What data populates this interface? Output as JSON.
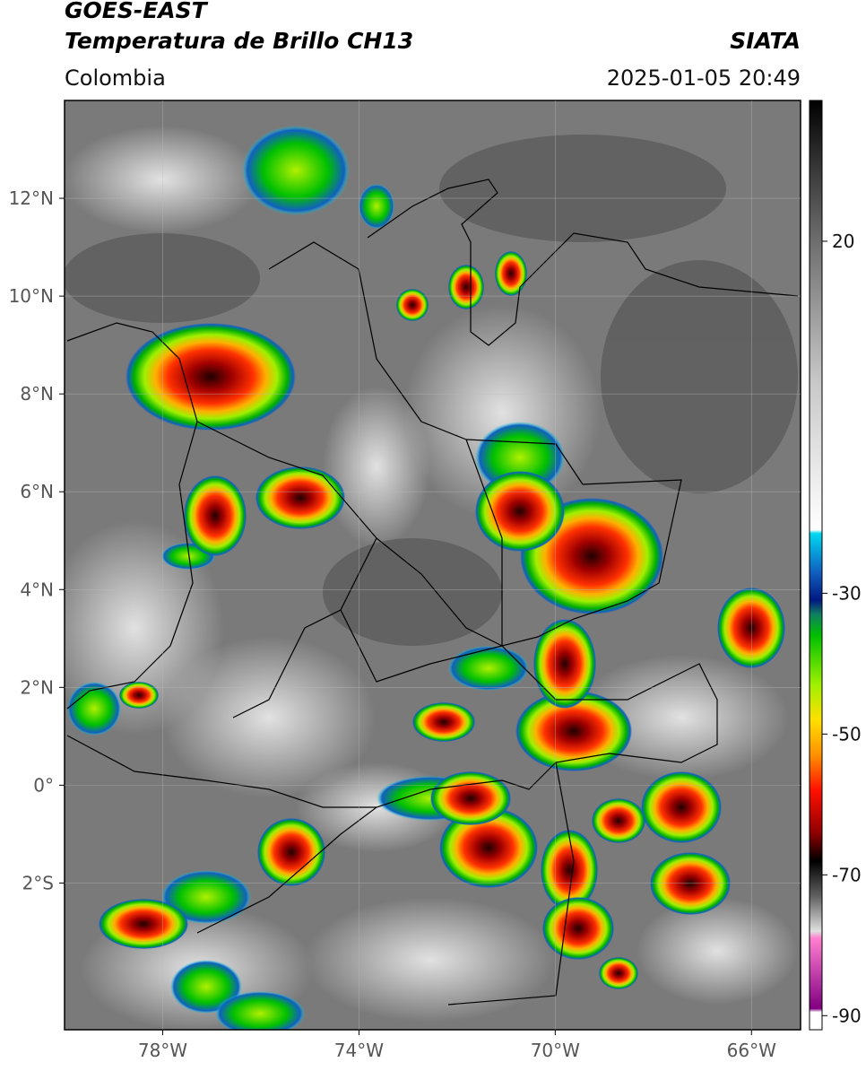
{
  "header": {
    "title": "GOES-EAST",
    "subtitle": "Temperatura de Brillo CH13",
    "source": "SIATA",
    "region": "Colombia",
    "timestamp": "2025-01-05 20:49"
  },
  "chart_data": {
    "type": "map",
    "xlim": [
      -80,
      -65
    ],
    "ylim": [
      -5,
      14
    ],
    "xticks": [
      {
        "value": -78,
        "label": "78°W"
      },
      {
        "value": -74,
        "label": "74°W"
      },
      {
        "value": -70,
        "label": "70°W"
      },
      {
        "value": -66,
        "label": "66°W"
      }
    ],
    "yticks": [
      {
        "value": -2,
        "label": "2°S"
      },
      {
        "value": 0,
        "label": "0°"
      },
      {
        "value": 2,
        "label": "2°N"
      },
      {
        "value": 4,
        "label": "4°N"
      },
      {
        "value": 6,
        "label": "6°N"
      },
      {
        "value": 8,
        "label": "8°N"
      },
      {
        "value": 10,
        "label": "10°N"
      },
      {
        "value": 12,
        "label": "12°N"
      }
    ],
    "grid": true,
    "colorbar": {
      "clim": [
        -92,
        40
      ],
      "ticks": [
        20,
        -30,
        -50,
        -70,
        -90
      ],
      "colormap": [
        {
          "value": 40,
          "color": "#000000"
        },
        {
          "value": 30,
          "color": "#3a3a3a"
        },
        {
          "value": 20,
          "color": "#6e6e6e"
        },
        {
          "value": 0,
          "color": "#c8c8c8"
        },
        {
          "value": -21,
          "color": "#ffffff"
        },
        {
          "value": -21.5,
          "color": "#00d8f0"
        },
        {
          "value": -27,
          "color": "#1060c0"
        },
        {
          "value": -31,
          "color": "#001880"
        },
        {
          "value": -33,
          "color": "#108060"
        },
        {
          "value": -36,
          "color": "#00c000"
        },
        {
          "value": -43,
          "color": "#a0f000"
        },
        {
          "value": -48,
          "color": "#ffe000"
        },
        {
          "value": -53,
          "color": "#ff9000"
        },
        {
          "value": -58,
          "color": "#ff1000"
        },
        {
          "value": -64,
          "color": "#900000"
        },
        {
          "value": -68,
          "color": "#000000"
        },
        {
          "value": -73,
          "color": "#606060"
        },
        {
          "value": -78,
          "color": "#e0e0e0"
        },
        {
          "value": -79,
          "color": "#ff80d0"
        },
        {
          "value": -89,
          "color": "#800080"
        },
        {
          "value": -89.5,
          "color": "#ffffff"
        },
        {
          "value": -92,
          "color": "#ffffff"
        }
      ]
    }
  }
}
